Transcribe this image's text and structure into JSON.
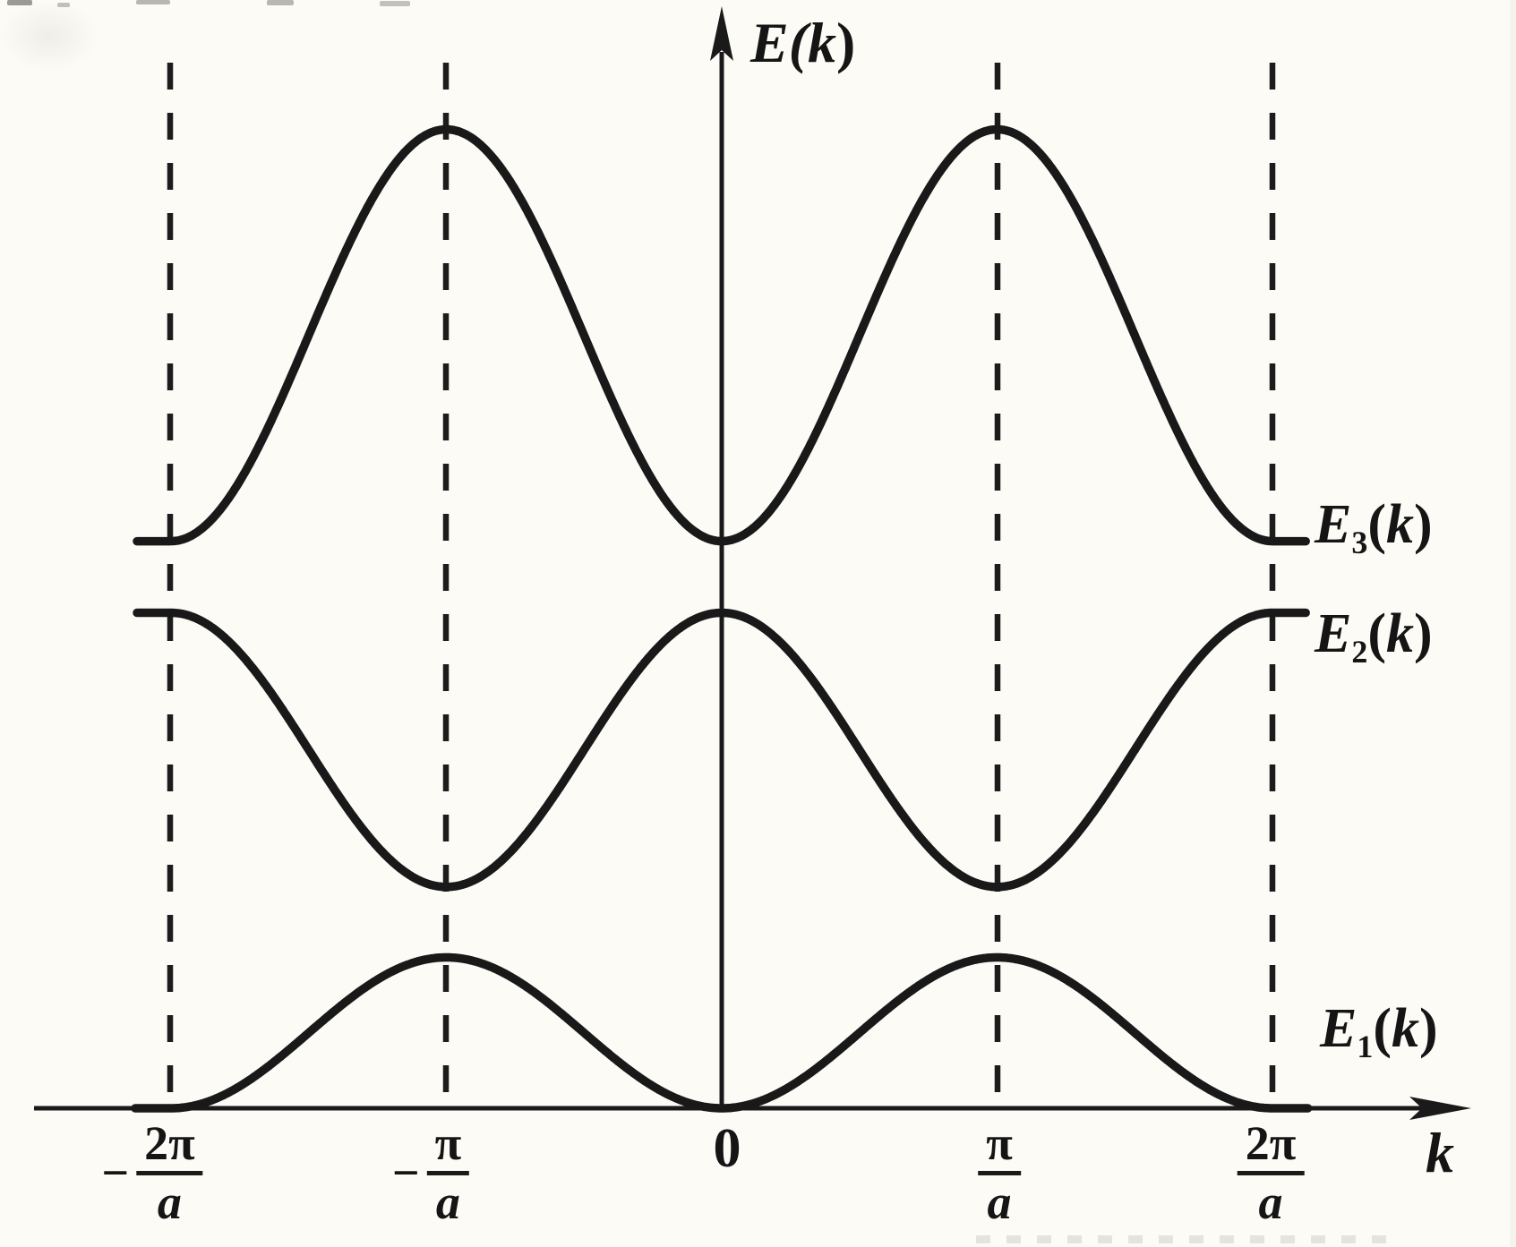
{
  "colors": {
    "ink": "#1a1a1a",
    "background": "#fcfbf6"
  },
  "figure": {
    "y_axis_label": {
      "pre": "E(",
      "k": "k",
      "post": ")"
    },
    "x_axis_label": "k",
    "ticks": [
      {
        "minus": "−",
        "num": "2π",
        "den": "a"
      },
      {
        "minus": "−",
        "num": "π",
        "den": "a"
      },
      {
        "zero": "0"
      },
      {
        "num": "π",
        "den": "a"
      },
      {
        "num": "2π",
        "den": "a"
      }
    ]
  },
  "chart_data": {
    "type": "line",
    "title": "",
    "xlabel": "k",
    "ylabel": "E(k)",
    "x_tick_labels": [
      "−2π/a",
      "−π/a",
      "0",
      "π/a",
      "2π/a"
    ],
    "x_range": "k from −2π/a to +2π/a; each band ends in a short horizontal stub just beyond ±2π/a",
    "grid": "vertical dashed guide lines at k = ±π/a and k = ±2π/a",
    "legend_position": "band labels at right ends of curves",
    "energy_units": "normalized: x-axis = 0, y-axis arrow tip ≈ 1",
    "series": [
      {
        "name": "E1(k)",
        "label": {
          "base": "E",
          "sub": "1",
          "pre": "(",
          "k": "k",
          "post": ")"
        },
        "shape": "cosine-like band, period 2π/a, touches x-axis at its minima",
        "extremum_at_zero": "min",
        "min": 0.0,
        "max": 0.137,
        "minima_at": [
          "0",
          "±2π/a"
        ],
        "maxima_at": [
          "±π/a"
        ],
        "values_at_ticks": [
          0,
          0.137,
          0,
          0.137,
          0
        ]
      },
      {
        "name": "E2(k)",
        "label": {
          "base": "E",
          "sub": "2",
          "pre": "(",
          "k": "k",
          "post": ")"
        },
        "shape": "cosine-like band, period 2π/a, inverted relative to E1",
        "extremum_at_zero": "max",
        "min": 0.201,
        "max": 0.45,
        "minima_at": [
          "±π/a"
        ],
        "maxima_at": [
          "0",
          "±2π/a"
        ],
        "values_at_ticks": [
          0.45,
          0.201,
          0.45,
          0.201,
          0.45
        ]
      },
      {
        "name": "E3(k)",
        "label": {
          "base": "E",
          "sub": "3",
          "pre": "(",
          "k": "k",
          "post": ")"
        },
        "shape": "cosine-like band, period 2π/a, largest amplitude",
        "extremum_at_zero": "min",
        "min": 0.515,
        "max": 0.889,
        "minima_at": [
          "0",
          "±2π/a"
        ],
        "maxima_at": [
          "±π/a"
        ],
        "values_at_ticks": [
          0.515,
          0.889,
          0.515,
          0.889,
          0.515
        ]
      }
    ],
    "band_gaps": [
      {
        "between": [
          "E1",
          "E2"
        ],
        "at": "±π/a",
        "gap": 0.064
      },
      {
        "between": [
          "E2",
          "E3"
        ],
        "at": "0 and ±2π/a",
        "gap": 0.065
      }
    ]
  }
}
